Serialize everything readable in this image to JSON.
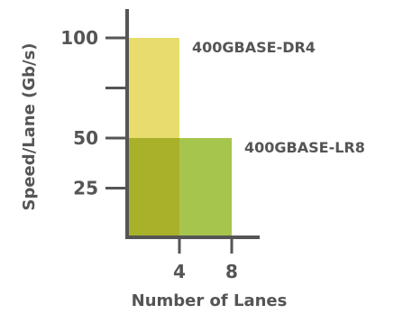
{
  "chart_data": {
    "type": "bar",
    "xlabel": "Number of Lanes",
    "ylabel": "Speed/Lane (Gb/s)",
    "y_tick_labels": [
      "25",
      "50",
      "100"
    ],
    "y_ticks_unlabeled": [
      75
    ],
    "x_tick_labels": [
      "4",
      "8"
    ],
    "xlim": [
      0,
      10
    ],
    "ylim": [
      0,
      117
    ],
    "grid": false,
    "series": [
      {
        "name": "400GBASE-DR4",
        "lanes": 4,
        "speed": 100,
        "color": "#e8dc6e"
      },
      {
        "name": "400GBASE-LR8",
        "lanes": 8,
        "speed": 50,
        "color": "#a6c54c"
      }
    ],
    "colors": {
      "axis": "#555555",
      "text": "#555555",
      "overlap": "#a9b02a"
    }
  }
}
